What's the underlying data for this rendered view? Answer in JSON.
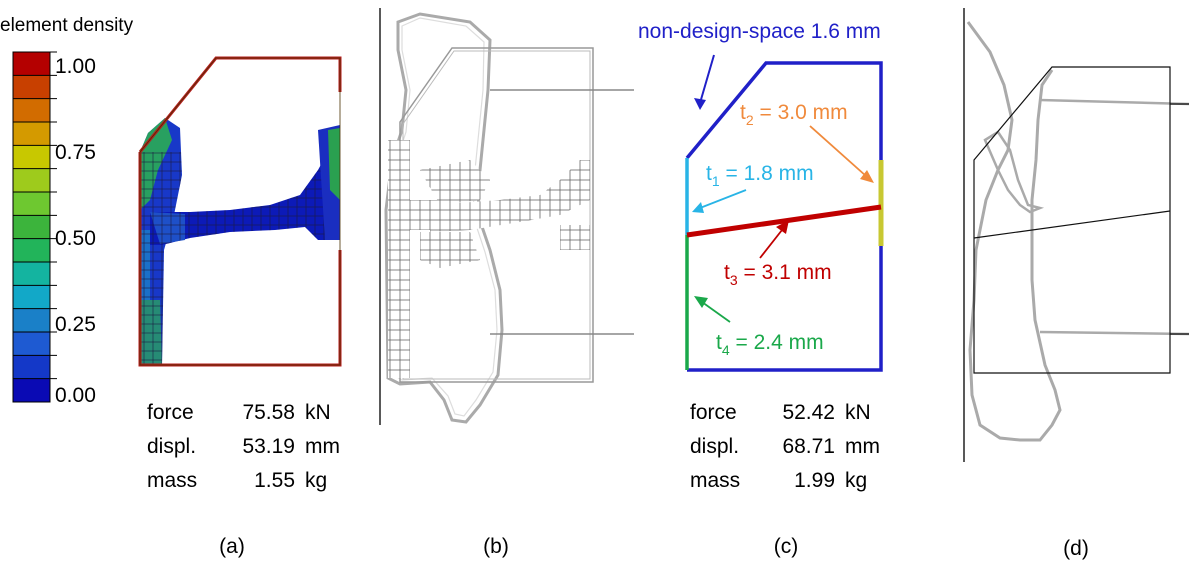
{
  "panel_a": {
    "colorbar_title": "element density",
    "tick_labels": [
      "1.00",
      "0.75",
      "0.50",
      "0.25",
      "0.00"
    ],
    "colors": [
      "#b40000",
      "#c84000",
      "#d26c00",
      "#d49a00",
      "#c8c800",
      "#9ecb1c",
      "#6ec830",
      "#3cb43c",
      "#22b45a",
      "#14b4a0",
      "#12a8c8",
      "#1a80c8",
      "#1e5ad2",
      "#1438c8",
      "#0a0ab4"
    ],
    "results": [
      {
        "label": "force",
        "value": "75.58",
        "unit": "kN"
      },
      {
        "label": "displ.",
        "value": "53.19",
        "unit": "mm"
      },
      {
        "label": "mass",
        "value": "1.55",
        "unit": "kg"
      }
    ],
    "caption": "(a)"
  },
  "panel_b": {
    "caption": "(b)"
  },
  "panel_c": {
    "non_design_label": "non-design-space 1.6 mm",
    "t2": {
      "sym": "t",
      "sub": "2",
      "text": " = 3.0 mm",
      "color": "#f08a3c"
    },
    "t1": {
      "sym": "t",
      "sub": "1",
      "text": " = 1.8 mm",
      "color": "#28b4e6"
    },
    "t3": {
      "sym": "t",
      "sub": "3",
      "text": " = 3.1 mm",
      "color": "#c00000"
    },
    "t4": {
      "sym": "t",
      "sub": "4",
      "text": " = 2.4 mm",
      "color": "#1aa84a"
    },
    "outline_color": "#2020c8",
    "right_segment_color": "#c8c832",
    "results": [
      {
        "label": "force",
        "value": "52.42",
        "unit": "kN"
      },
      {
        "label": "displ.",
        "value": "68.71",
        "unit": "mm"
      },
      {
        "label": "mass",
        "value": "1.99",
        "unit": "kg"
      }
    ],
    "caption": "(c)"
  },
  "panel_d": {
    "caption": "(d)"
  }
}
